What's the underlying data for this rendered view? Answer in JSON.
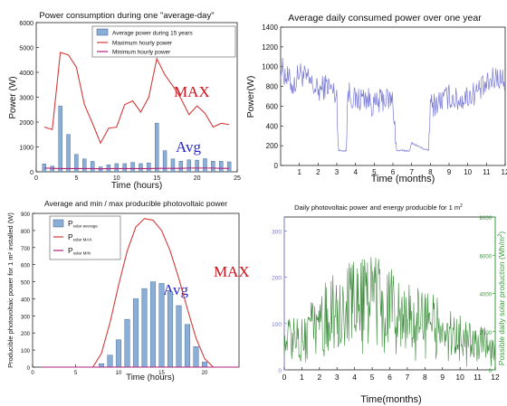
{
  "colors": {
    "bar_fill": "#8aaed6",
    "bar_stroke": "#3a5f8f",
    "max_line": "#d23a3a",
    "min_line": "#b2207a",
    "daily_line": "#7b7bd6",
    "pv_daily": "#3a8a3a",
    "energy_axis": "#3a9a3a",
    "power_axis": "#7777bb",
    "annotation_red": "#c8141e",
    "annotation_blue": "#2828c8"
  },
  "chart_data": [
    {
      "type": "bar",
      "title": "Power consumption during one \"average-day\"",
      "xlabel": "Time (hours)",
      "ylabel": "Power (W)",
      "xlim": [
        0,
        25
      ],
      "ylim": [
        0,
        6000
      ],
      "xticks": [
        "0",
        "5",
        "10",
        "15",
        "20",
        "25"
      ],
      "yticks": [
        "0",
        "1000",
        "2000",
        "3000",
        "4000",
        "5000",
        "6000"
      ],
      "legend": [
        "Average power during 15 years",
        "Maximum hourly power",
        "Minimum hourly power"
      ],
      "legend_position": "top-right",
      "annotations": [
        "MAX",
        "Avg"
      ],
      "x": [
        1,
        2,
        3,
        4,
        5,
        6,
        7,
        8,
        9,
        10,
        11,
        12,
        13,
        14,
        15,
        16,
        17,
        18,
        19,
        20,
        21,
        22,
        23,
        24
      ],
      "series": [
        {
          "name": "Average power during 15 years",
          "kind": "bar",
          "values": [
            320,
            230,
            2650,
            1500,
            700,
            520,
            420,
            200,
            280,
            330,
            330,
            380,
            330,
            360,
            1960,
            850,
            520,
            430,
            480,
            470,
            530,
            430,
            430,
            400
          ]
        },
        {
          "name": "Maximum hourly power",
          "kind": "line",
          "values": [
            1800,
            1700,
            4800,
            4700,
            4200,
            2700,
            1950,
            1150,
            1750,
            1800,
            2700,
            2850,
            2400,
            3000,
            4550,
            3900,
            3450,
            2950,
            2300,
            2650,
            2350,
            1800,
            1950,
            1900
          ]
        },
        {
          "name": "Minimum hourly power",
          "kind": "line",
          "values": [
            150,
            140,
            130,
            130,
            130,
            130,
            130,
            120,
            130,
            130,
            130,
            130,
            130,
            130,
            140,
            140,
            140,
            140,
            150,
            150,
            150,
            150,
            140,
            140
          ]
        }
      ]
    },
    {
      "type": "line",
      "title": "Average daily consumed power over one year",
      "xlabel": "Time (months)",
      "ylabel": "Power(W)",
      "xlim": [
        0,
        12
      ],
      "ylim": [
        0,
        1400
      ],
      "xticks": [
        "1",
        "2",
        "3",
        "4",
        "5",
        "6",
        "7",
        "8",
        "9",
        "10",
        "11",
        "12"
      ],
      "yticks": [
        "0",
        "200",
        "400",
        "600",
        "800",
        "1000",
        "1200",
        "1400"
      ],
      "keypoints": [
        [
          0,
          1000
        ],
        [
          0.3,
          900
        ],
        [
          0.7,
          800
        ],
        [
          1,
          950
        ],
        [
          1.5,
          850
        ],
        [
          2,
          750
        ],
        [
          2.5,
          820
        ],
        [
          3,
          700
        ],
        [
          3.1,
          150
        ],
        [
          3.5,
          150
        ],
        [
          3.6,
          750
        ],
        [
          4,
          650
        ],
        [
          4.5,
          700
        ],
        [
          5,
          600
        ],
        [
          5.5,
          680
        ],
        [
          6,
          650
        ],
        [
          6.2,
          150
        ],
        [
          6.9,
          150
        ],
        [
          7,
          230
        ],
        [
          7.5,
          180
        ],
        [
          7.9,
          150
        ],
        [
          8,
          600
        ],
        [
          8.5,
          650
        ],
        [
          9,
          700
        ],
        [
          9.5,
          650
        ],
        [
          10,
          700
        ],
        [
          10.5,
          750
        ],
        [
          11,
          800
        ],
        [
          11.5,
          900
        ],
        [
          12,
          850
        ]
      ]
    },
    {
      "type": "bar",
      "title": "Average and min / max producible photovoltaic power",
      "xlabel": "Time (hours)",
      "ylabel": "Producible photovoltaic power for 1 m² installed (W)",
      "xlim": [
        0,
        24
      ],
      "ylim": [
        0,
        900
      ],
      "xticks": [
        "0",
        "5",
        "10",
        "15",
        "20"
      ],
      "yticks": [
        "0",
        "100",
        "200",
        "300",
        "400",
        "500",
        "600",
        "700",
        "800",
        "900"
      ],
      "legend_position": "top-left",
      "annotations": [
        "MAX",
        "Avg"
      ],
      "x": [
        1,
        2,
        3,
        4,
        5,
        6,
        7,
        8,
        9,
        10,
        11,
        12,
        13,
        14,
        15,
        16,
        17,
        18,
        19,
        20,
        21,
        22,
        23,
        24
      ],
      "series": [
        {
          "name": "P solar average",
          "kind": "bar",
          "values": [
            0,
            0,
            0,
            0,
            0,
            0,
            0,
            20,
            70,
            160,
            280,
            400,
            460,
            500,
            490,
            440,
            360,
            250,
            120,
            30,
            0,
            0,
            0,
            0
          ]
        },
        {
          "name": "P solar MAX",
          "kind": "line",
          "values": [
            0,
            0,
            0,
            0,
            0,
            0,
            0,
            80,
            260,
            480,
            680,
            820,
            870,
            860,
            800,
            680,
            520,
            340,
            170,
            50,
            0,
            0,
            0,
            0
          ]
        },
        {
          "name": "P solar MIN",
          "kind": "line",
          "values": [
            0,
            0,
            0,
            0,
            0,
            0,
            0,
            0,
            0,
            0,
            0,
            0,
            0,
            0,
            0,
            0,
            0,
            0,
            0,
            0,
            0,
            0,
            0,
            0
          ]
        }
      ]
    },
    {
      "type": "line",
      "title": "Daily photovoltaic power and energy producible for 1 m²",
      "xlabel": "Time(months)",
      "ylabel_right": "Possible daily solar production (Wh/m²)",
      "xlim": [
        0,
        12
      ],
      "ylim": [
        0,
        330
      ],
      "xticks": [
        "0",
        "1",
        "2",
        "3",
        "4",
        "5",
        "6",
        "7",
        "8",
        "9",
        "10",
        "11",
        "12"
      ],
      "yticks": [
        "0",
        "100",
        "200",
        "300"
      ],
      "yticks_right": [
        "0",
        "2000",
        "4000",
        "6000",
        "8000"
      ],
      "keypoints": [
        [
          0,
          90
        ],
        [
          1,
          120
        ],
        [
          2,
          160
        ],
        [
          3,
          200
        ],
        [
          4,
          230
        ],
        [
          5,
          240
        ],
        [
          6,
          220
        ],
        [
          7,
          190
        ],
        [
          8,
          160
        ],
        [
          9,
          130
        ],
        [
          10,
          100
        ],
        [
          11,
          75
        ],
        [
          12,
          60
        ]
      ]
    }
  ]
}
